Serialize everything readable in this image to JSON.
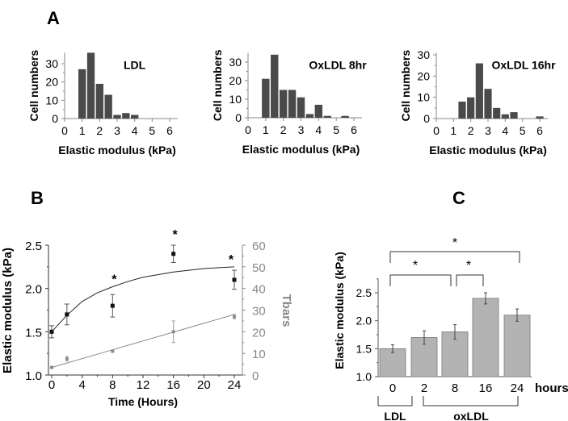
{
  "panel_labels": {
    "a": "A",
    "b": "B",
    "c": "C"
  },
  "colors": {
    "hist_bar": "#4a4a4a",
    "line_dark": "#222222",
    "line_gray": "#8c8c8c",
    "bar_c": "#b3b3b3",
    "axis_gray": "#888888"
  },
  "chart_data": [
    {
      "type": "bar",
      "panel": "A",
      "title": "LDL",
      "xlabel": "Elastic modulus (kPa)",
      "ylabel": "Cell numbers",
      "x": [
        1,
        1.5,
        2,
        2.5,
        3,
        3.5,
        4
      ],
      "values": [
        27,
        36,
        19,
        13,
        2,
        3,
        2
      ],
      "xticks": [
        0,
        1,
        2,
        3,
        4,
        5,
        6
      ],
      "yticks": [
        0,
        10,
        20,
        30
      ],
      "xlim": [
        0,
        6
      ],
      "ylim": [
        0,
        36
      ]
    },
    {
      "type": "bar",
      "panel": "A",
      "title": "OxLDL 8hr",
      "xlabel": "Elastic modulus (kPa)",
      "ylabel": "Cell numbers",
      "x": [
        1,
        1.5,
        2,
        2.5,
        3,
        3.5,
        4,
        4.5,
        5,
        5.5
      ],
      "values": [
        21,
        34,
        15,
        15,
        11,
        2,
        7,
        1,
        0,
        1
      ],
      "xticks": [
        0,
        1,
        2,
        3,
        4,
        5,
        6
      ],
      "yticks": [
        0,
        10,
        20,
        30
      ],
      "xlim": [
        0,
        6
      ],
      "ylim": [
        0,
        35
      ]
    },
    {
      "type": "bar",
      "panel": "A",
      "title": "OxLDL 16hr",
      "xlabel": "Elastic modulus (kPa)",
      "ylabel": "Cell numbers",
      "x": [
        1.5,
        2,
        2.5,
        3,
        3.5,
        4,
        4.5,
        6
      ],
      "values": [
        8,
        10,
        26,
        14,
        5,
        2,
        3,
        1
      ],
      "xticks": [
        0,
        1,
        2,
        3,
        4,
        5,
        6
      ],
      "yticks": [
        0,
        10,
        20,
        30
      ],
      "xlim": [
        0,
        6
      ],
      "ylim": [
        0,
        31
      ]
    },
    {
      "type": "line",
      "panel": "B",
      "xlabel": "Time (Hours)",
      "ylabel": "Elastic modulus (kPa)",
      "y2label": "Tbars",
      "xticks": [
        0,
        4,
        8,
        12,
        16,
        20,
        24
      ],
      "yticks": [
        "1.0",
        "1.5",
        "2.0",
        "2.5"
      ],
      "y2ticks": [
        0,
        10,
        20,
        30,
        40,
        50,
        60
      ],
      "xlim": [
        0,
        24
      ],
      "ylim": [
        1.0,
        2.5
      ],
      "y2lim": [
        0,
        60
      ],
      "series": [
        {
          "name": "Elastic modulus",
          "axis": "left",
          "x": [
            0,
            2,
            8,
            16,
            24
          ],
          "values": [
            1.5,
            1.7,
            1.8,
            2.4,
            2.1
          ],
          "errors": [
            0.07,
            0.12,
            0.13,
            0.1,
            0.11
          ],
          "fit": {
            "x": [
              0,
              2,
              4,
              6,
              8,
              10,
              12,
              14,
              16,
              18,
              20,
              22,
              24
            ],
            "values": [
              1.5,
              1.69,
              1.85,
              1.95,
              2.02,
              2.08,
              2.13,
              2.16,
              2.19,
              2.21,
              2.23,
              2.24,
              2.25
            ]
          },
          "significance": [
            "",
            "",
            "*",
            "*",
            "*"
          ]
        },
        {
          "name": "Tbars",
          "axis": "right",
          "x": [
            0,
            2,
            8,
            16,
            24
          ],
          "values": [
            3.5,
            7.5,
            11,
            20,
            27
          ],
          "errors": [
            0.5,
            1,
            0.5,
            5,
            1
          ],
          "fit": {
            "x": [
              0,
              24
            ],
            "values": [
              3.5,
              28
            ]
          }
        }
      ]
    },
    {
      "type": "bar",
      "panel": "C",
      "ylabel": "Elastic modulus (kPa)",
      "xlabel": "hours",
      "categories": [
        "0",
        "2",
        "8",
        "16",
        "24"
      ],
      "values": [
        1.5,
        1.7,
        1.8,
        2.4,
        2.1
      ],
      "errors": [
        0.07,
        0.12,
        0.13,
        0.1,
        0.11
      ],
      "yticks": [
        "1.0",
        "1.5",
        "2.0",
        "2.5"
      ],
      "ylim": [
        1.0,
        2.75
      ],
      "groups": [
        {
          "label": "LDL",
          "categories": [
            "0"
          ]
        },
        {
          "label": "oxLDL",
          "categories": [
            "2",
            "8",
            "16",
            "24"
          ]
        }
      ],
      "comparisons": [
        {
          "from": "0",
          "to": "24",
          "label": "*"
        },
        {
          "from": "0",
          "to": "8",
          "label": "*"
        },
        {
          "from": "8",
          "to": "16",
          "label": "*"
        }
      ]
    }
  ]
}
